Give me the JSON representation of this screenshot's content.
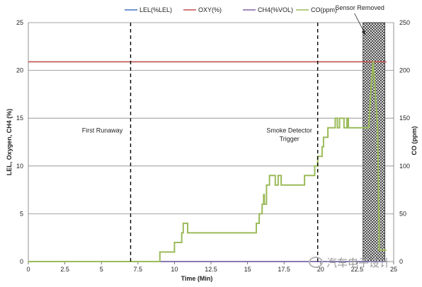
{
  "chart_data": {
    "type": "line",
    "title": "",
    "xlabel": "Time (Min)",
    "ylabel_left": "LEL, Oxygen, CH4 (%)",
    "ylabel_right": "CO (ppm)",
    "xlim": [
      0,
      25
    ],
    "ylim_left": [
      0,
      25
    ],
    "ylim_right": [
      0,
      250
    ],
    "x_ticks": [
      "0",
      "2.5",
      "5",
      "7.5",
      "10",
      "12.5",
      "15",
      "17.5",
      "20",
      "22.5",
      "25"
    ],
    "y_ticks_left": [
      "0",
      "5",
      "10",
      "15",
      "20",
      "25"
    ],
    "y_ticks_right": [
      "0",
      "50",
      "100",
      "150",
      "200",
      "250"
    ],
    "grid": "horizontal",
    "legend_position": "top",
    "series": [
      {
        "name": "LEL(%LEL)",
        "axis": "left",
        "color": "#4472c4",
        "points": [
          [
            0,
            0
          ],
          [
            24.5,
            0
          ]
        ]
      },
      {
        "name": "OXY(%)",
        "axis": "left",
        "color": "#c0504d",
        "points": [
          [
            0,
            20.9
          ],
          [
            24.5,
            20.9
          ]
        ]
      },
      {
        "name": "CH4(%VOL)",
        "axis": "left",
        "color": "#8064a2",
        "points": [
          [
            0,
            0
          ],
          [
            24.5,
            0
          ]
        ]
      },
      {
        "name": "CO(ppm)",
        "axis": "right",
        "color": "#9bbb59",
        "points": [
          [
            0,
            0
          ],
          [
            9,
            0
          ],
          [
            9,
            10
          ],
          [
            10,
            10
          ],
          [
            10,
            20
          ],
          [
            10.5,
            20
          ],
          [
            10.5,
            30
          ],
          [
            10.6,
            30
          ],
          [
            10.6,
            40
          ],
          [
            10.9,
            40
          ],
          [
            10.9,
            30
          ],
          [
            15.6,
            30
          ],
          [
            15.6,
            40
          ],
          [
            15.8,
            40
          ],
          [
            15.8,
            50
          ],
          [
            16.0,
            50
          ],
          [
            16.0,
            60
          ],
          [
            16.1,
            60
          ],
          [
            16.1,
            70
          ],
          [
            16.15,
            70
          ],
          [
            16.15,
            60
          ],
          [
            16.3,
            60
          ],
          [
            16.3,
            80
          ],
          [
            16.5,
            80
          ],
          [
            16.5,
            90
          ],
          [
            16.9,
            90
          ],
          [
            16.9,
            80
          ],
          [
            17.1,
            80
          ],
          [
            17.1,
            90
          ],
          [
            17.3,
            90
          ],
          [
            17.3,
            80
          ],
          [
            18.9,
            80
          ],
          [
            18.9,
            90
          ],
          [
            19.6,
            90
          ],
          [
            19.6,
            100
          ],
          [
            19.8,
            100
          ],
          [
            19.8,
            110
          ],
          [
            20.1,
            110
          ],
          [
            20.1,
            120
          ],
          [
            20.2,
            120
          ],
          [
            20.2,
            130
          ],
          [
            20.5,
            130
          ],
          [
            20.5,
            140
          ],
          [
            21.0,
            140
          ],
          [
            21.0,
            150
          ],
          [
            21.15,
            150
          ],
          [
            21.15,
            140
          ],
          [
            21.3,
            140
          ],
          [
            21.3,
            150
          ],
          [
            21.6,
            150
          ],
          [
            21.6,
            140
          ],
          [
            21.8,
            140
          ],
          [
            21.8,
            150
          ],
          [
            21.9,
            150
          ],
          [
            21.9,
            140
          ],
          [
            23.3,
            140
          ],
          [
            23.4,
            170
          ],
          [
            23.6,
            210
          ],
          [
            23.9,
            140
          ],
          [
            24.0,
            30
          ],
          [
            24.0,
            12
          ],
          [
            24.5,
            12
          ]
        ]
      }
    ],
    "annotations": [
      {
        "type": "vline",
        "x": 7.0,
        "label_lines": [
          "First Runaway"
        ],
        "label_y": 13.5
      },
      {
        "type": "vline",
        "x": 19.8,
        "label_lines": [
          "Smoke Detector",
          "Trigger"
        ],
        "label_y": 13.5
      },
      {
        "type": "shaded_region",
        "x_start": 22.9,
        "x_end": 24.4,
        "label": "Sensor Removed"
      }
    ]
  },
  "watermark": {
    "text": "汽车电子设计"
  }
}
